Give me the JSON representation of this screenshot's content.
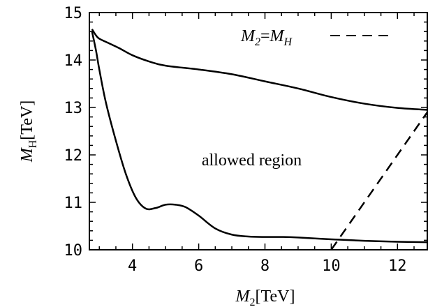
{
  "chart_data": {
    "type": "line",
    "xlabel": {
      "base": "M",
      "sub": "2",
      "unit": "[TeV]"
    },
    "ylabel": {
      "base": "M",
      "sub": "H",
      "unit": "[TeV]"
    },
    "xlim": [
      2.7,
      12.9
    ],
    "ylim": [
      10,
      15
    ],
    "x_ticks": [
      4,
      6,
      8,
      10,
      12
    ],
    "y_ticks": [
      10,
      11,
      12,
      13,
      14,
      15
    ],
    "x_minor_step": 0.5,
    "y_minor_step": 0.2,
    "grid": false,
    "legend": {
      "position": "top-right",
      "label": {
        "a": "M",
        "a_sub": "2",
        "eq": "=",
        "b": "M",
        "b_sub": "H"
      }
    },
    "annotations": [
      {
        "text": "allowed region",
        "x": 7.6,
        "y": 11.9
      }
    ],
    "series": [
      {
        "style": "solid",
        "color": "#000000",
        "points": [
          [
            2.78,
            14.65
          ],
          [
            2.9,
            14.52
          ],
          [
            3.0,
            14.45
          ],
          [
            3.3,
            14.35
          ],
          [
            3.6,
            14.25
          ],
          [
            4.0,
            14.1
          ],
          [
            4.5,
            13.97
          ],
          [
            5.0,
            13.88
          ],
          [
            6.0,
            13.8
          ],
          [
            7.0,
            13.7
          ],
          [
            8.0,
            13.55
          ],
          [
            9.0,
            13.4
          ],
          [
            10.0,
            13.22
          ],
          [
            11.0,
            13.08
          ],
          [
            12.0,
            12.99
          ],
          [
            12.9,
            12.95
          ]
        ]
      },
      {
        "style": "solid",
        "color": "#000000",
        "points": [
          [
            2.78,
            14.6
          ],
          [
            2.9,
            14.2
          ],
          [
            3.0,
            13.8
          ],
          [
            3.2,
            13.1
          ],
          [
            3.5,
            12.3
          ],
          [
            3.8,
            11.6
          ],
          [
            4.1,
            11.1
          ],
          [
            4.4,
            10.87
          ],
          [
            4.7,
            10.88
          ],
          [
            5.0,
            10.95
          ],
          [
            5.3,
            10.95
          ],
          [
            5.6,
            10.9
          ],
          [
            6.0,
            10.72
          ],
          [
            6.5,
            10.45
          ],
          [
            7.0,
            10.32
          ],
          [
            7.5,
            10.28
          ],
          [
            8.0,
            10.27
          ],
          [
            8.5,
            10.27
          ],
          [
            9.0,
            10.26
          ],
          [
            10.0,
            10.22
          ],
          [
            11.0,
            10.19
          ],
          [
            12.0,
            10.17
          ],
          [
            12.9,
            10.16
          ]
        ]
      },
      {
        "style": "dashed",
        "color": "#000000",
        "points": [
          [
            10.0,
            10.0
          ],
          [
            12.9,
            12.9
          ]
        ]
      }
    ]
  }
}
